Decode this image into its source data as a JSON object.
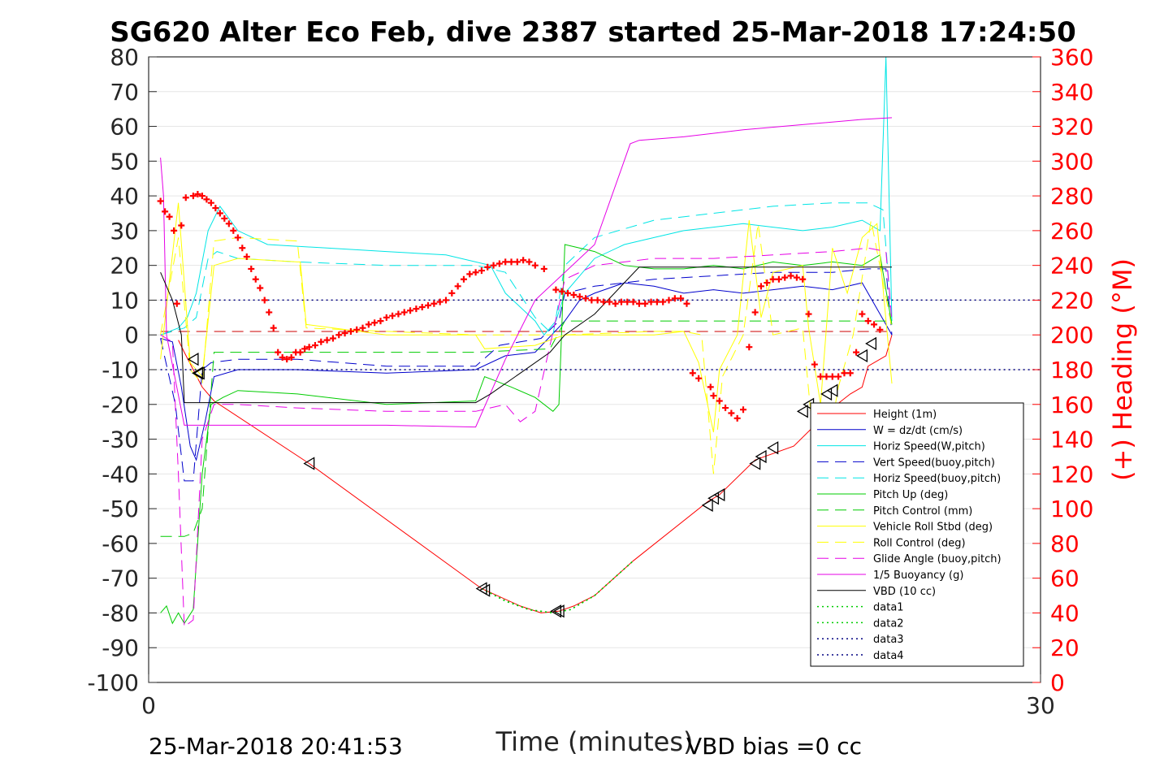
{
  "chart_data": {
    "type": "line",
    "title": "SG620 Alter Eco Feb, dive 2387 started 25-Mar-2018 17:24:50",
    "xlabel": "Time (minutes)",
    "ylabel_left": "",
    "ylabel_right": "(+) Heading (°M)",
    "xlim": [
      0,
      30
    ],
    "ylim_left": [
      -100,
      80
    ],
    "ylim_right": [
      0,
      360
    ],
    "x_ticks": [
      0,
      30
    ],
    "y_ticks_left": [
      80,
      70,
      60,
      50,
      40,
      30,
      20,
      10,
      0,
      -10,
      -20,
      -30,
      -40,
      -50,
      -60,
      -70,
      -80,
      -90,
      -100
    ],
    "y_ticks_right": [
      360,
      340,
      320,
      300,
      280,
      260,
      240,
      220,
      200,
      180,
      160,
      140,
      120,
      100,
      80,
      60,
      40,
      20,
      0
    ],
    "grid_y": true,
    "legend_position": "bottom-right",
    "footer_left": "25-Mar-2018 20:41:53",
    "footer_right": "VBD bias =0 cc",
    "colors": {
      "height": "#ff0000",
      "w": "#0000cc",
      "horiz_speed_w": "#00e5e5",
      "vert_speed_buoy": "#0000cc",
      "horiz_speed_buoy": "#00e5e5",
      "pitch_up": "#00cc00",
      "pitch_control": "#00cc00",
      "roll": "#ffff00",
      "roll_control": "#ffff00",
      "glide_angle": "#e600e6",
      "buoyancy": "#e600e6",
      "vbd": "#000000",
      "heading": "#ff0000"
    },
    "series": [
      {
        "name": "Height (1m)",
        "style": "solid",
        "color": "#ff0000",
        "x": [
          1.0,
          1.2,
          1.5,
          1.8,
          2.2,
          5.4,
          11.2,
          12.5,
          13.2,
          13.8,
          14.3,
          15.0,
          16.3,
          18.8,
          19.2,
          20.4,
          21.7,
          23.0,
          23.6,
          24.0,
          24.2,
          24.8,
          25.0
        ],
        "y": [
          -1.5,
          -5,
          -10,
          -15,
          -19,
          -37,
          -73,
          -78,
          -80,
          -79.5,
          -78,
          -75,
          -65,
          -48,
          -46,
          -36,
          -32,
          -21,
          -17,
          -15,
          -9,
          -6,
          0
        ]
      },
      {
        "name": "W = dz/dt (cm/s)",
        "style": "solid",
        "color": "#0000cc",
        "x": [
          0.4,
          0.8,
          1.1,
          1.4,
          1.6,
          1.9,
          2.2,
          3,
          5,
          8,
          11,
          12,
          13,
          14,
          14.5,
          15,
          16,
          17,
          18,
          19,
          20,
          21,
          22,
          23,
          24,
          25
        ],
        "y": [
          -1,
          -2,
          -15,
          -32,
          -36,
          -25,
          -12,
          -10,
          -10,
          -11,
          -10,
          -6,
          -5,
          4,
          10,
          12,
          15,
          14,
          12,
          13,
          12,
          13,
          14,
          13,
          15,
          0
        ]
      },
      {
        "name": "Horiz Speed(W,pitch)",
        "style": "solid",
        "color": "#00e5e5",
        "x": [
          0.4,
          1.0,
          1.3,
          1.6,
          2.0,
          2.4,
          3,
          4,
          6,
          8,
          10,
          11,
          11.5,
          12,
          13,
          13.3,
          13.7,
          14,
          15,
          16,
          17,
          18,
          19,
          20,
          21,
          22,
          23,
          24,
          24.6,
          24.8,
          25
        ],
        "y": [
          0,
          2,
          5,
          12,
          30,
          37,
          30,
          26,
          25,
          24,
          23,
          21,
          20,
          12,
          4,
          0,
          4,
          12,
          22,
          26,
          28,
          30,
          31,
          32,
          31,
          30,
          31,
          33,
          30,
          80,
          4
        ]
      },
      {
        "name": "Vert Speed(buoy,pitch)",
        "style": "dashed",
        "color": "#0000cc",
        "x": [
          0.4,
          0.9,
          1.2,
          1.5,
          1.8,
          2.1,
          3,
          5,
          8,
          11,
          11.8,
          12.5,
          13.2,
          13.8,
          14,
          15,
          17,
          19,
          21,
          23,
          24.2,
          24.8,
          25
        ],
        "y": [
          -1,
          -20,
          -42,
          -42,
          -10,
          -8,
          -7,
          -7,
          -9,
          -9,
          -3,
          -2,
          -1,
          4,
          12,
          14,
          16,
          17,
          18,
          18,
          19,
          19,
          0
        ]
      },
      {
        "name": "Horiz Speed(buoy,pitch)",
        "style": "dashed",
        "color": "#00e5e5",
        "x": [
          0.4,
          1.2,
          1.6,
          2.0,
          2.3,
          3,
          5,
          8,
          11,
          12,
          13,
          13.6,
          14,
          15,
          17,
          19,
          21,
          23,
          24.2,
          24.7,
          25
        ],
        "y": [
          0,
          2,
          5,
          22,
          24,
          22,
          21,
          20,
          20,
          18,
          5,
          0,
          20,
          28,
          33,
          35,
          37,
          38,
          38,
          36,
          4
        ]
      },
      {
        "name": "Pitch Up (deg)",
        "style": "solid",
        "color": "#00cc00",
        "x": [
          0.4,
          0.6,
          0.8,
          1.0,
          1.2,
          1.5,
          1.8,
          2.1,
          2.5,
          3,
          5,
          8,
          11,
          11.3,
          11.6,
          12.2,
          13,
          13.6,
          13.8,
          14,
          15,
          16,
          17,
          18,
          19,
          20,
          21,
          22,
          23,
          24,
          24.6,
          25
        ],
        "y": [
          -80,
          -78,
          -83,
          -80,
          -83,
          -79,
          -40,
          -20,
          -18,
          -16,
          -17,
          -20,
          -19,
          -12,
          -13,
          -15,
          -18,
          -22,
          -20,
          26,
          24,
          20,
          19,
          19,
          20,
          19,
          21,
          20,
          21,
          20,
          23,
          3
        ]
      },
      {
        "name": "Pitch Control (mm)",
        "style": "dashed",
        "color": "#00cc00",
        "x": [
          0.4,
          0.9,
          1.2,
          1.5,
          1.8,
          2.2,
          5,
          8,
          11,
          13.5,
          14,
          20,
          25
        ],
        "y": [
          -58,
          -58,
          -58,
          -57,
          -50,
          -5,
          -5,
          -5,
          -5,
          -4,
          4,
          4,
          4
        ]
      },
      {
        "name": "Vehicle Roll Stbd (deg)",
        "style": "solid",
        "color": "#ffff00",
        "x": [
          0.4,
          1.0,
          1.4,
          1.8,
          2.2,
          3,
          5,
          5.1,
          5.3,
          8,
          11,
          11.3,
          13,
          14,
          17,
          18,
          18.5,
          19,
          19.2,
          19.8,
          20.2,
          20.6,
          21,
          22,
          22.2,
          22.6,
          23,
          23.5,
          24,
          24.5,
          25
        ],
        "y": [
          -7,
          38,
          -8,
          -12,
          20,
          22,
          21,
          21,
          3,
          0,
          0,
          -4,
          -3,
          0,
          0,
          1,
          -8,
          -28,
          -10,
          0,
          33,
          5,
          18,
          20,
          2,
          -20,
          25,
          12,
          28,
          32,
          -14
        ]
      },
      {
        "name": "Roll Control (deg)",
        "style": "dashed",
        "color": "#ffff00",
        "x": [
          0.4,
          1.0,
          1.4,
          1.8,
          2.2,
          3,
          5,
          5.3,
          8,
          11,
          13,
          14,
          17,
          18,
          18.6,
          19.0,
          19.3,
          20,
          20.5,
          21,
          22,
          22.3,
          22.8,
          23.2,
          23.7,
          24.3,
          25
        ],
        "y": [
          0,
          28,
          -10,
          -14,
          27,
          28,
          27,
          2,
          1,
          0,
          0,
          0,
          1,
          1,
          0,
          -40,
          -12,
          0,
          32,
          0,
          2,
          -25,
          -35,
          -15,
          0,
          33,
          2
        ]
      },
      {
        "name": "Glide Angle (buoy,pitch)",
        "style": "dashed",
        "color": "#e600e6",
        "x": [
          0.4,
          0.8,
          1.0,
          1.2,
          1.5,
          1.8,
          2.2,
          3,
          5,
          8,
          11,
          12,
          12.5,
          13,
          14,
          15,
          17,
          19,
          21,
          23,
          24.2,
          24.8,
          25
        ],
        "y": [
          0,
          -2,
          -40,
          -84,
          -82,
          -30,
          -20,
          -20,
          -21,
          -22,
          -22,
          -20,
          -25,
          -22,
          16,
          20,
          22,
          22,
          23,
          24,
          25,
          24,
          4
        ]
      },
      {
        "name": "1/5 Buoyancy (g)",
        "style": "solid",
        "color": "#e600e6",
        "x": [
          0.4,
          0.5,
          0.6,
          1.2,
          2.0,
          5,
          8,
          11.0,
          12.0,
          13.0,
          14.0,
          15.0,
          16.2,
          16.5,
          18,
          20,
          22,
          24,
          25
        ],
        "y": [
          51,
          40,
          0,
          -26,
          -26,
          -26,
          -26,
          -26.5,
          -7,
          10,
          18,
          26,
          55,
          56,
          57,
          59,
          60.5,
          62,
          62.5
        ]
      },
      {
        "name": "VBD (10 cc)",
        "style": "solid",
        "color": "#000000",
        "x": [
          0.4,
          0.8,
          1.1,
          1.2,
          5,
          8,
          11.0,
          11.5,
          12.5,
          13.5,
          14.0,
          15.0,
          16.5,
          17,
          20,
          25
        ],
        "y": [
          18,
          10,
          0,
          -19.5,
          -19.5,
          -19.5,
          -19.5,
          -17,
          -11,
          -5,
          0,
          6,
          19.5,
          19.5,
          19.5,
          19.5
        ]
      },
      {
        "name": "data1",
        "style": "dotted",
        "color": "#00cc00",
        "x": [
          11.2,
          12.0,
          12.8,
          13.6,
          14.2,
          15.0,
          16.3
        ],
        "y": [
          -73,
          -76.5,
          -79,
          -80,
          -79,
          -75,
          -65
        ]
      },
      {
        "name": "data2",
        "style": "dotted",
        "color": "#00cc00",
        "x": [
          11.2,
          12.0,
          12.8,
          13.6,
          14.2,
          15.0,
          16.3
        ],
        "y": [
          -73,
          -76.6,
          -79.1,
          -80,
          -79,
          -75,
          -65
        ]
      },
      {
        "name": "data3",
        "style": "dotted",
        "color": "#000080",
        "x": [
          0.4,
          30
        ],
        "y": [
          10,
          10
        ]
      },
      {
        "name": "data4",
        "style": "dotted",
        "color": "#000080",
        "x": [
          0.4,
          30
        ],
        "y": [
          -10,
          -10
        ]
      }
    ],
    "reference_lines": [
      {
        "y": 1,
        "style": "dashed",
        "color": "#cc0000",
        "x": [
          0.4,
          25
        ]
      }
    ],
    "markers": {
      "triangles_left": {
        "x": [
          1.5,
          1.65,
          1.7,
          5.4,
          11.2,
          11.3,
          13.7,
          13.8,
          18.8,
          19.0,
          19.2,
          20.4,
          20.6,
          21.0,
          22.0,
          22.2,
          22.8,
          23.0,
          24.0,
          24.3
        ],
        "y": [
          -7,
          -11,
          -11,
          -37,
          -73,
          -73.5,
          -79.5,
          -79.5,
          -49,
          -47,
          -46,
          -37,
          -35,
          -32.5,
          -22,
          -20,
          -17,
          -16,
          -6,
          -2.5
        ]
      },
      "heading_points": {
        "x": [
          0.4,
          0.55,
          0.7,
          0.85,
          0.95,
          1.1,
          1.25,
          1.5,
          1.65,
          1.8,
          1.95,
          2.1,
          2.25,
          2.4,
          2.55,
          2.7,
          2.85,
          3.0,
          3.15,
          3.3,
          3.45,
          3.6,
          3.75,
          3.9,
          4.05,
          4.2,
          4.35,
          4.5,
          4.65,
          4.8,
          4.95,
          5.1,
          5.25,
          5.4,
          5.6,
          5.8,
          6.0,
          6.2,
          6.4,
          6.6,
          6.8,
          7.0,
          7.2,
          7.4,
          7.6,
          7.8,
          8.0,
          8.2,
          8.4,
          8.6,
          8.8,
          9.0,
          9.2,
          9.4,
          9.6,
          9.8,
          10.0,
          10.2,
          10.4,
          10.6,
          10.8,
          11.0,
          11.2,
          11.4,
          11.6,
          11.8,
          12.0,
          12.2,
          12.4,
          12.6,
          12.8,
          13.0,
          13.3,
          13.7,
          13.9,
          14.1,
          14.3,
          14.5,
          14.7,
          14.9,
          15.1,
          15.3,
          15.5,
          15.7,
          15.9,
          16.1,
          16.3,
          16.5,
          16.7,
          16.9,
          17.1,
          17.3,
          17.5,
          17.7,
          17.9,
          18.1,
          18.3,
          18.5,
          18.9,
          19.0,
          19.2,
          19.4,
          19.6,
          19.8,
          20.0,
          20.2,
          20.4,
          20.6,
          20.8,
          21.0,
          21.2,
          21.4,
          21.6,
          21.8,
          22.0,
          22.2,
          22.4,
          22.6,
          22.8,
          23.0,
          23.2,
          23.4,
          23.6,
          23.8,
          24.0,
          24.2,
          24.4,
          24.6
        ],
        "heading": [
          277,
          271,
          268,
          260,
          218,
          263,
          279,
          280,
          281,
          280,
          278,
          276,
          273,
          270,
          267,
          264,
          260,
          256,
          250,
          245,
          238,
          232,
          227,
          220,
          213,
          204,
          190,
          187,
          186,
          187,
          190,
          190,
          192,
          193,
          194,
          196,
          197,
          198,
          200,
          201,
          202,
          203,
          204,
          206,
          207,
          208,
          210,
          211,
          212,
          213,
          214,
          215,
          216,
          217,
          218,
          219,
          220,
          224,
          228,
          232,
          235,
          236,
          237,
          239,
          240,
          241,
          242,
          242,
          242,
          243,
          242,
          240,
          238,
          226,
          225,
          224,
          223,
          222,
          221,
          220,
          220,
          219,
          219,
          218,
          219,
          219,
          219,
          218,
          218,
          219,
          219,
          219,
          220,
          221,
          221,
          218,
          178,
          175,
          170,
          165,
          162,
          158,
          155,
          152,
          157,
          193,
          213,
          228,
          230,
          232,
          232,
          233,
          234,
          233,
          232,
          212,
          183,
          176,
          176,
          176,
          176,
          178,
          178,
          190,
          212,
          208,
          206,
          203,
          240
        ]
      }
    }
  }
}
